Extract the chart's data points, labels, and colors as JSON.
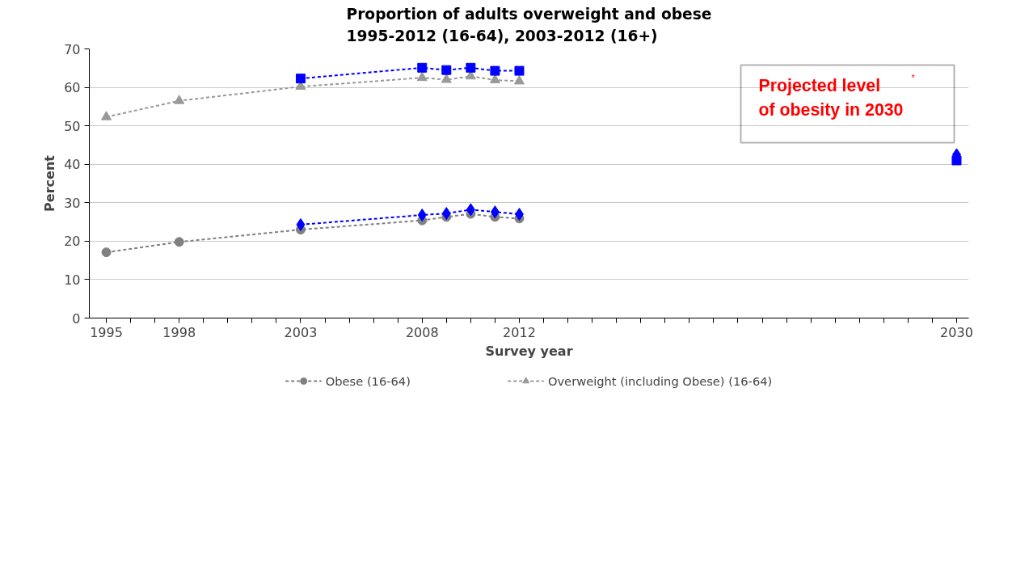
{
  "chart_data": {
    "type": "line",
    "title": "Proportion of adults overweight and obese\n1995-2012 (16-64), 2003-2012 (16+)",
    "xlabel": "Survey year",
    "ylabel": "Percent",
    "xlim": [
      1994.3,
      2030.5
    ],
    "ylim": [
      0,
      70
    ],
    "yticks": [
      0,
      10,
      20,
      30,
      40,
      50,
      60,
      70
    ],
    "xticks": [
      1995,
      {
        "value": 1996,
        "label": null
      },
      {
        "value": 1997,
        "label": null
      },
      1998,
      {
        "value": 1999,
        "label": null
      },
      {
        "value": 2000,
        "label": null
      },
      {
        "value": 2001,
        "label": null
      },
      {
        "value": 2002,
        "label": null
      },
      2003,
      {
        "value": 2004,
        "label": null
      },
      {
        "value": 2005,
        "label": null
      },
      {
        "value": 2006,
        "label": null
      },
      {
        "value": 2007,
        "label": null
      },
      2008,
      {
        "value": 2009,
        "label": null
      },
      {
        "value": 2010,
        "label": null
      },
      {
        "value": 2011,
        "label": null
      },
      2012,
      {
        "value": 2013,
        "label": null
      },
      {
        "value": 2014,
        "label": null
      },
      {
        "value": 2015,
        "label": null
      },
      {
        "value": 2016,
        "label": null
      },
      {
        "value": 2017,
        "label": null
      },
      {
        "value": 2018,
        "label": null
      },
      {
        "value": 2019,
        "label": null
      },
      {
        "value": 2020,
        "label": null
      },
      {
        "value": 2021,
        "label": null
      },
      {
        "value": 2022,
        "label": null
      },
      {
        "value": 2023,
        "label": null
      },
      {
        "value": 2024,
        "label": null
      },
      {
        "value": 2025,
        "label": null
      },
      {
        "value": 2026,
        "label": null
      },
      {
        "value": 2027,
        "label": null
      },
      {
        "value": 2028,
        "label": null
      },
      {
        "value": 2029,
        "label": null
      },
      2030
    ],
    "grid": "y",
    "legend": "bottom",
    "line_style": "dashed",
    "series": [
      {
        "name": "Obese (16-64)",
        "color": "#808080",
        "marker": "circle",
        "x": [
          1995,
          1998,
          2003,
          2008,
          2009,
          2010,
          2011,
          2012
        ],
        "values": [
          17.1,
          19.8,
          23.0,
          25.4,
          26.3,
          27.1,
          26.3,
          25.9
        ]
      },
      {
        "name": "Overweight (including Obese) (16-64)",
        "color": "#999999",
        "marker": "triangle",
        "x": [
          1995,
          1998,
          2003,
          2008,
          2009,
          2010,
          2011,
          2012
        ],
        "values": [
          52.3,
          56.5,
          60.2,
          62.5,
          62.0,
          62.9,
          61.9,
          61.6
        ]
      },
      {
        "color": "#0000ff",
        "marker": "square",
        "x": [
          2003,
          2008,
          2009,
          2010,
          2011,
          2012
        ],
        "values": [
          62.3,
          65.1,
          64.5,
          65.1,
          64.3,
          64.3
        ]
      },
      {
        "color": "#0000ff",
        "marker": "diamond",
        "x": [
          2003,
          2008,
          2009,
          2010,
          2011,
          2012
        ],
        "values": [
          24.3,
          26.8,
          27.2,
          28.2,
          27.6,
          27.0
        ]
      },
      {
        "type": "scatter",
        "color": "#0000ff",
        "marker": "diamond",
        "x": [
          2030
        ],
        "values": [
          42.5
        ]
      },
      {
        "type": "scatter",
        "color": "#0000ff",
        "marker": "square",
        "x": [
          2030
        ],
        "values": [
          41.0
        ]
      }
    ],
    "annotations": [
      "Projected level$^{*}$\nof obesity in 2030"
    ]
  }
}
